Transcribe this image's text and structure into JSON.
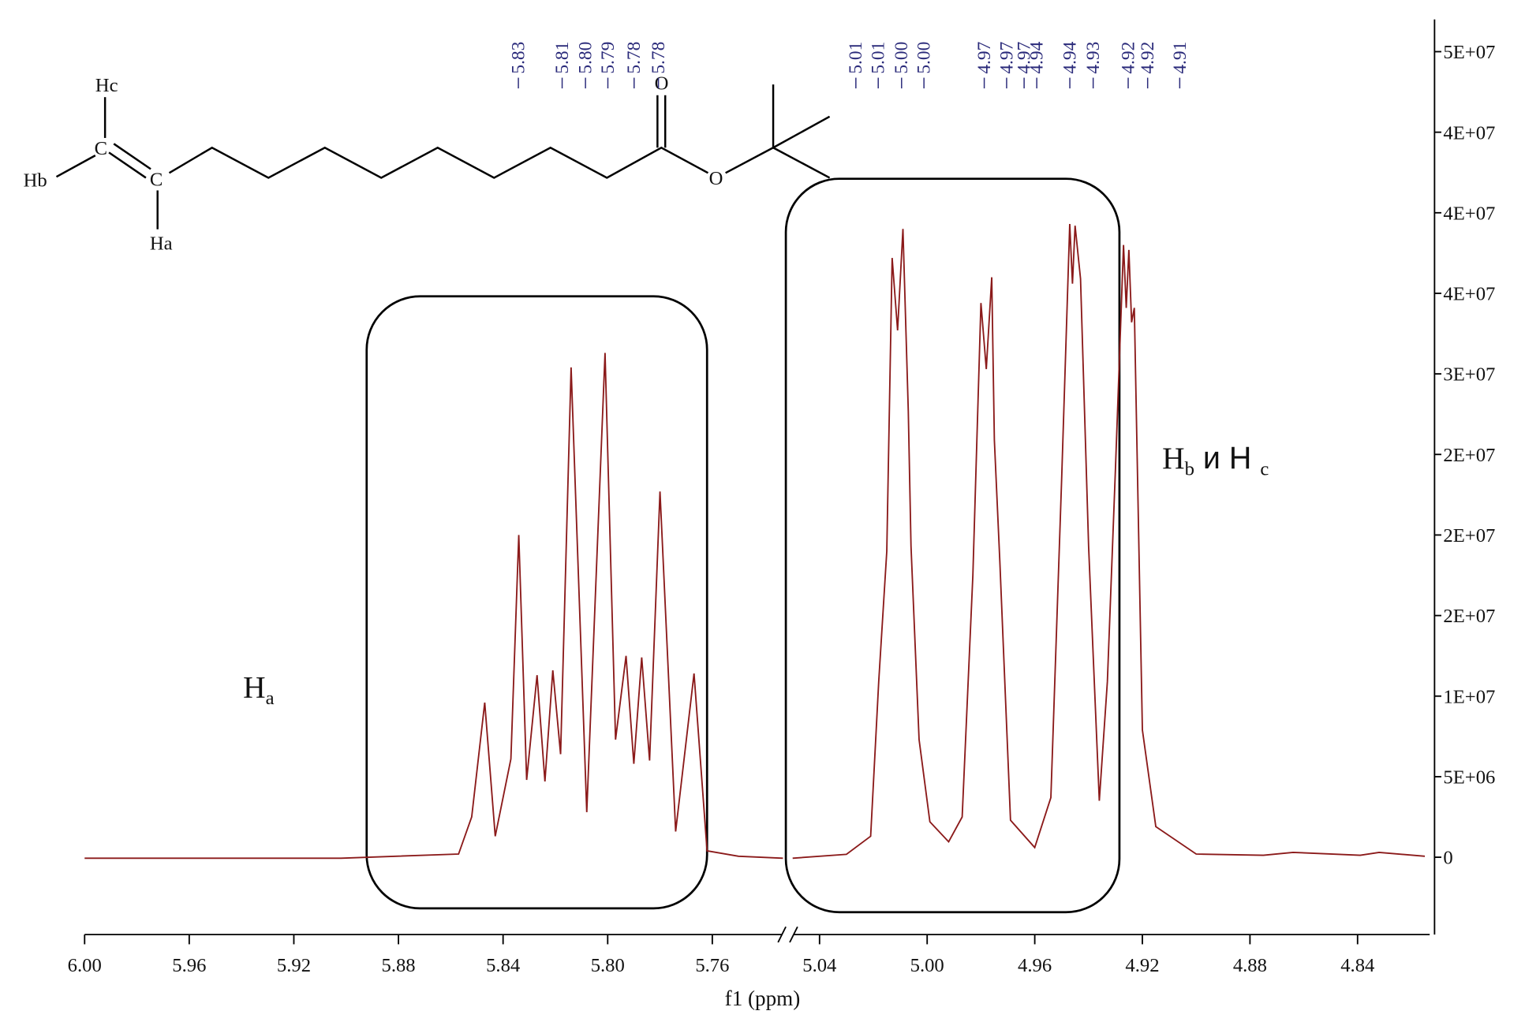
{
  "chart_data": {
    "type": "line",
    "xlabel": "f1 (ppm)",
    "color": "#8b1a1a",
    "ylim": [
      -4800000,
      52000000
    ],
    "yticks": [
      0,
      {
        "value": 5000000,
        "label": "5E+06"
      },
      {
        "value": 10000000,
        "label": "1E+07"
      },
      {
        "value": 15000000,
        "label": "2E+07"
      },
      {
        "value": 20000000,
        "label": "2E+07"
      },
      {
        "value": 25000000,
        "label": "2E+07"
      },
      {
        "value": 30000000,
        "label": "3E+07"
      },
      {
        "value": 35000000,
        "label": "4E+07"
      },
      {
        "value": 40000000,
        "label": "4E+07"
      },
      {
        "value": 45000000,
        "label": "4E+07"
      },
      {
        "value": 50000000,
        "label": "5E+07"
      }
    ],
    "segments": [
      {
        "xlim": [
          6.0,
          5.733
        ],
        "xticks": [
          {
            "value": 6.0,
            "label": "6.00"
          },
          5.96,
          5.92,
          5.88,
          5.84,
          {
            "value": 5.8,
            "label": "5.80"
          },
          5.76
        ],
        "x": [
          6.0,
          5.958,
          5.902,
          5.857,
          5.852,
          5.847,
          5.843,
          5.837,
          5.834,
          5.831,
          5.827,
          5.824,
          5.821,
          5.818,
          5.814,
          5.808,
          5.801,
          5.797,
          5.793,
          5.79,
          5.787,
          5.784,
          5.78,
          5.774,
          5.767,
          5.762,
          5.75,
          5.733
        ],
        "values": [
          -60000,
          -60000,
          -60000,
          200000,
          2500000,
          9600000,
          1300000,
          6100000,
          20000000,
          4800000,
          11300000,
          4700000,
          11600000,
          6400000,
          30400000,
          2800000,
          31300000,
          7300000,
          12500000,
          5800000,
          12400000,
          6000000,
          22700000,
          1600000,
          11400000,
          400000,
          60000,
          -60000
        ]
      },
      {
        "xlim": [
          5.05,
          4.815
        ],
        "xticks": [
          5.04,
          {
            "value": 5.0,
            "label": "5.00"
          },
          4.96,
          4.92,
          4.88,
          4.84
        ],
        "x": [
          5.05,
          5.03,
          5.021,
          5.018,
          5.015,
          5.013,
          5.011,
          5.009,
          5.007,
          5.006,
          5.003,
          4.999,
          4.992,
          4.987,
          4.983,
          4.98,
          4.978,
          4.976,
          4.975,
          4.973,
          4.969,
          4.96,
          4.954,
          4.95,
          4.947,
          4.946,
          4.945,
          4.943,
          4.94,
          4.936,
          4.933,
          4.93,
          4.927,
          4.926,
          4.925,
          4.924,
          4.923,
          4.92,
          4.915,
          4.9,
          4.875,
          4.864,
          4.839,
          4.832,
          4.815
        ],
        "values": [
          -60000,
          180000,
          1300000,
          10900000,
          19000000,
          37200000,
          32700000,
          39000000,
          27700000,
          19300000,
          7300000,
          2200000,
          960000,
          2500000,
          17500000,
          34400000,
          30300000,
          36000000,
          25900000,
          18400000,
          2300000,
          600000,
          3700000,
          23500000,
          39300000,
          35600000,
          39200000,
          35900000,
          19300000,
          3500000,
          10900000,
          24100000,
          38000000,
          34100000,
          37700000,
          33200000,
          34100000,
          7900000,
          1900000,
          200000,
          120000,
          300000,
          120000,
          300000,
          60000
        ]
      }
    ],
    "peak_labels": [
      "5.83",
      "5.81",
      "5.80",
      "5.79",
      "5.78",
      "5.78",
      "5.01",
      "5.01",
      "5.00",
      "5.00",
      "4.97",
      "4.97",
      "4.97",
      "4.94",
      "4.94",
      "4.93",
      "4.92",
      "4.92",
      "4.91"
    ],
    "annotations": [
      [
        "H",
        "a"
      ],
      [
        "H",
        "b",
        " и H ",
        "c"
      ]
    ]
  },
  "molecule": {
    "atoms": [
      "Hc",
      "C",
      "Hb",
      "C",
      "Ha",
      "O",
      "O"
    ]
  }
}
